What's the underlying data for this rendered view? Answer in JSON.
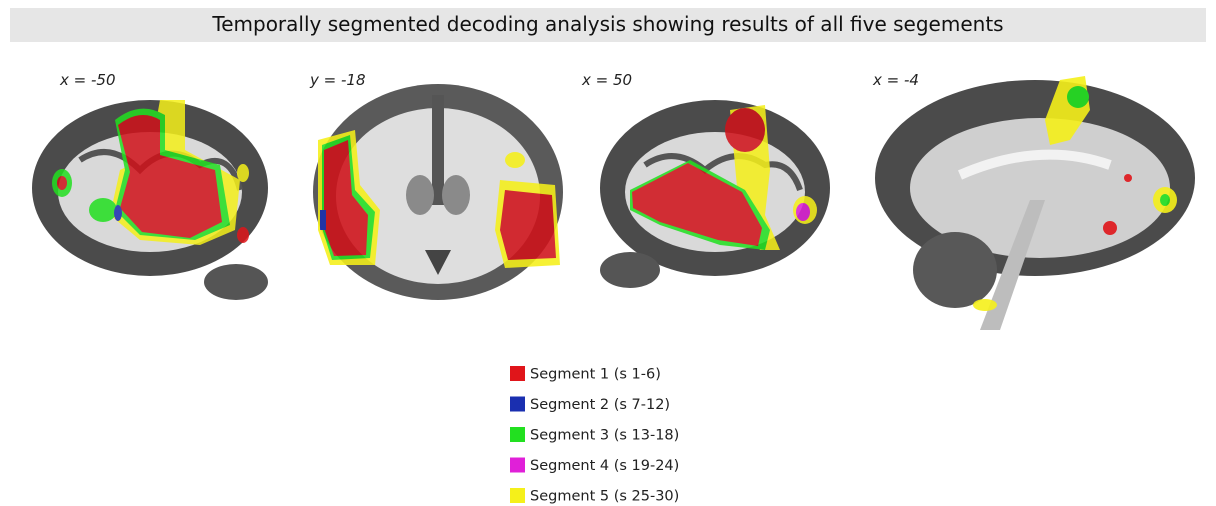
{
  "title": "Temporally segmented decoding analysis showing results of all five segements",
  "panels": [
    {
      "label": "x = -50"
    },
    {
      "label": "y = -18"
    },
    {
      "label": "x = 50"
    },
    {
      "label": "x = -4"
    }
  ],
  "legend": {
    "items": [
      {
        "label": "Segment 1 (s 1-6)",
        "color": "#e0151a"
      },
      {
        "label": "Segment 2 (s 7-12)",
        "color": "#1a2fb0"
      },
      {
        "label": "Segment 3 (s 13-18)",
        "color": "#22e020"
      },
      {
        "label": "Segment 4 (s 19-24)",
        "color": "#e020d8"
      },
      {
        "label": "Segment 5 (s 25-30)",
        "color": "#f5f01a"
      }
    ]
  }
}
